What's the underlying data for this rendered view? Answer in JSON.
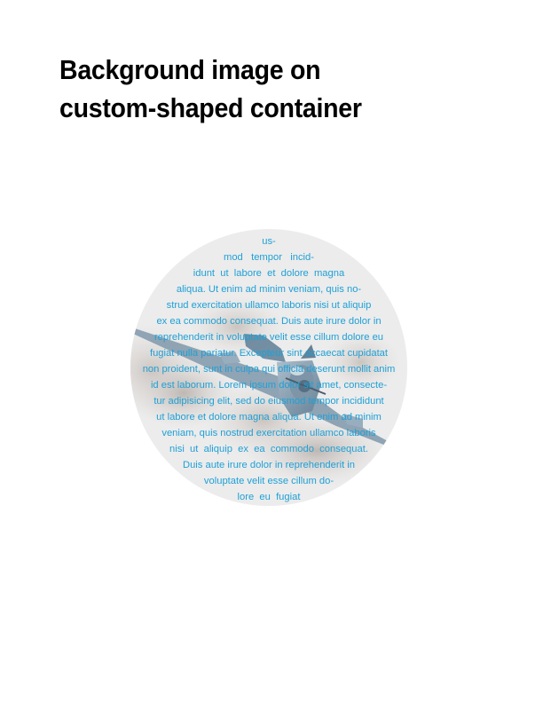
{
  "page": {
    "title_line_1": "Background image on",
    "title_line_2": "custom-shaped container"
  },
  "container": {
    "shape": "circle",
    "background_image": "airplane-photo",
    "text_color": "#1fa0d6",
    "lines": [
      "us-",
      "mod   tempor   incid-",
      "idunt  ut  labore  et  dolore  magna",
      "aliqua. Ut enim ad minim veniam, quis no-",
      "strud exercitation ullamco laboris nisi ut aliquip",
      "ex ea commodo consequat. Duis aute irure dolor in",
      "reprehenderit in voluptate velit esse cillum dolore eu",
      "fugiat nulla pariatur. Excepteur sint occaecat cupidatat",
      "non proident, sunt in culpa qui officia deserunt mollit anim",
      "id est laborum. Lorem ipsum dolor sit amet, consecte-",
      "tur adipisicing elit, sed do eiusmod tempor incididunt",
      "ut labore et dolore magna aliqua. Ut enim ad minim",
      "veniam, quis nostrud exercitation ullamco laboris",
      "nisi  ut  aliquip  ex  ea  commodo  consequat.",
      "Duis aute irure dolor in reprehenderit in",
      "voluptate velit esse cillum do-",
      "lore  eu  fugiat"
    ]
  }
}
